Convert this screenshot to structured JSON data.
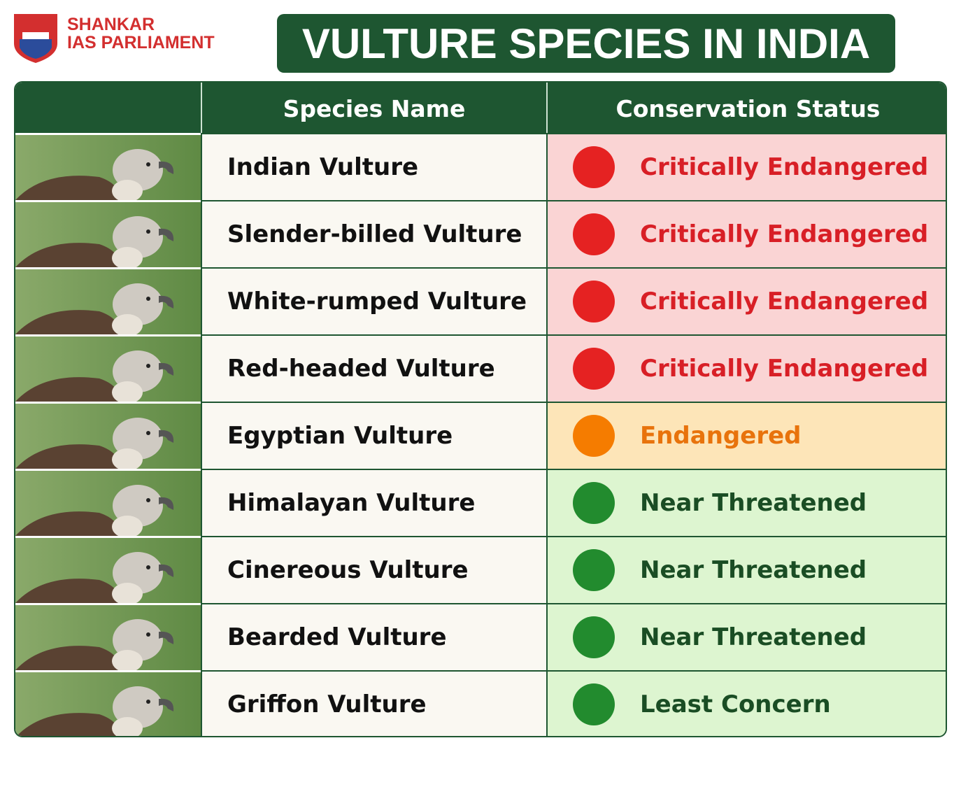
{
  "header": {
    "logo_lines": [
      "SHANKAR",
      "IAS PARLIAMENT"
    ],
    "title": "VULTURE SPECIES IN INDIA"
  },
  "table": {
    "columns": [
      "Species Name",
      "Conservation Status"
    ],
    "rows": [
      {
        "name": "Indian Vulture",
        "status": "Critically Endangered",
        "color": "#d81f26",
        "dot": "#e52222",
        "background": "#fad4d4"
      },
      {
        "name": "Slender-billed Vulture",
        "status": "Critically Endangered",
        "color": "#d81f26",
        "dot": "#e52222",
        "background": "#fad4d4"
      },
      {
        "name": "White-rumped Vulture",
        "status": "Critically Endangered",
        "color": "#d81f26",
        "dot": "#e52222",
        "background": "#fad4d4"
      },
      {
        "name": "Red-headed Vulture",
        "status": "Critically Endangered",
        "color": "#d81f26",
        "dot": "#e52222",
        "background": "#fad4d4"
      },
      {
        "name": "Egyptian Vulture",
        "status": "Endangered",
        "color": "#e8730c",
        "dot": "#f57c00",
        "background": "#fde5b8"
      },
      {
        "name": "Himalayan Vulture",
        "status": "Near Threatened",
        "color": "#1a4d24",
        "dot": "#228b2e",
        "background": "#ddf5d0"
      },
      {
        "name": "Cinereous Vulture",
        "status": "Near Threatened",
        "color": "#1a4d24",
        "dot": "#228b2e",
        "background": "#ddf5d0"
      },
      {
        "name": "Bearded Vulture",
        "status": "Near Threatened",
        "color": "#1a4d24",
        "dot": "#228b2e",
        "background": "#ddf5d0"
      },
      {
        "name": "Griffon Vulture",
        "status": "Least Concern",
        "color": "#1a4d24",
        "dot": "#228b2e",
        "background": "#ddf5d0"
      }
    ]
  }
}
